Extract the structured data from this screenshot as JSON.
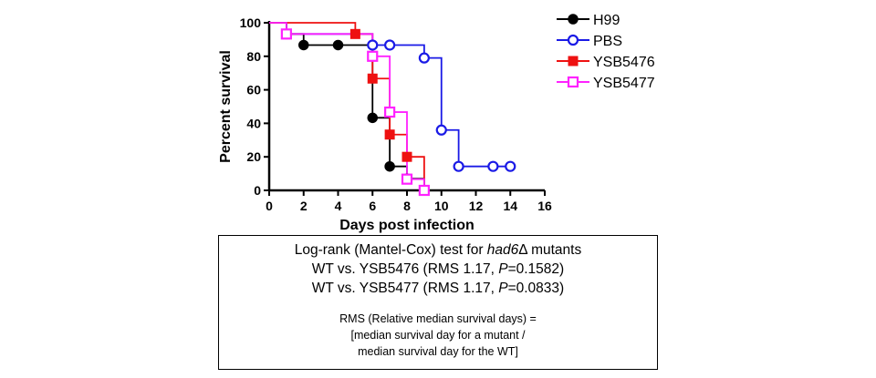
{
  "chart_data": {
    "type": "line",
    "step": true,
    "xlabel": "Days post infection",
    "ylabel": "Percent survival",
    "xlim": [
      0,
      16
    ],
    "ylim": [
      0,
      100
    ],
    "xticks": [
      0,
      2,
      4,
      6,
      8,
      10,
      12,
      14,
      16
    ],
    "yticks": [
      0,
      20,
      40,
      60,
      80,
      100
    ],
    "legend_position": "right",
    "series": [
      {
        "name": "H99",
        "color": "#000000",
        "marker": "filled-circle",
        "steps": [
          [
            0,
            100
          ],
          [
            1,
            93.3
          ],
          [
            2,
            86.7
          ],
          [
            6,
            43.3
          ],
          [
            7,
            14.3
          ],
          [
            8,
            7
          ],
          [
            9,
            0
          ]
        ],
        "markers": [
          [
            1,
            93.3
          ],
          [
            2,
            86.7
          ],
          [
            4,
            86.7
          ],
          [
            6,
            43.3
          ],
          [
            7,
            14.3
          ],
          [
            8,
            7
          ]
        ]
      },
      {
        "name": "PBS",
        "color": "#1a1ae6",
        "marker": "open-circle",
        "steps": [
          [
            0,
            100
          ],
          [
            1,
            93.3
          ],
          [
            6,
            86.7
          ],
          [
            9,
            79
          ],
          [
            10,
            36
          ],
          [
            11,
            14.3
          ],
          [
            14,
            14.3
          ]
        ],
        "markers": [
          [
            6,
            86.7
          ],
          [
            7,
            86.7
          ],
          [
            9,
            79
          ],
          [
            10,
            36
          ],
          [
            11,
            14.3
          ],
          [
            13,
            14.3
          ],
          [
            14,
            14.3
          ]
        ]
      },
      {
        "name": "YSB5476",
        "color": "#ee1111",
        "marker": "filled-square",
        "steps": [
          [
            0,
            100
          ],
          [
            5,
            93.3
          ],
          [
            6,
            66.7
          ],
          [
            7,
            33.3
          ],
          [
            8,
            20
          ],
          [
            9,
            0
          ]
        ],
        "markers": [
          [
            5,
            93.3
          ],
          [
            6,
            66.7
          ],
          [
            7,
            33.3
          ],
          [
            8,
            20
          ],
          [
            9,
            0
          ]
        ]
      },
      {
        "name": "YSB5477",
        "color": "#ff22ff",
        "marker": "open-square",
        "steps": [
          [
            0,
            100
          ],
          [
            1,
            93.3
          ],
          [
            6,
            80
          ],
          [
            7,
            46.7
          ],
          [
            8,
            6.7
          ],
          [
            9,
            0
          ]
        ],
        "markers": [
          [
            1,
            93.3
          ],
          [
            6,
            80
          ],
          [
            7,
            46.7
          ],
          [
            8,
            6.7
          ],
          [
            9,
            0
          ]
        ]
      }
    ]
  },
  "stats": {
    "title_prefix": "Log-rank (Mantel-Cox) test for ",
    "title_gene": "had6",
    "title_suffix": "Δ mutants",
    "comparisons": [
      {
        "prefix": "WT vs. YSB5476 (RMS 1.17, ",
        "p_symbol": "P",
        "p_value": "=0.1582)"
      },
      {
        "prefix": "WT vs. YSB5477 (RMS 1.17, ",
        "p_symbol": "P",
        "p_value": "=0.0833)"
      }
    ],
    "rms_lines": [
      "RMS (Relative median survival days) =",
      "[median survival day for a mutant  /",
      "median survival day for the WT]"
    ]
  }
}
